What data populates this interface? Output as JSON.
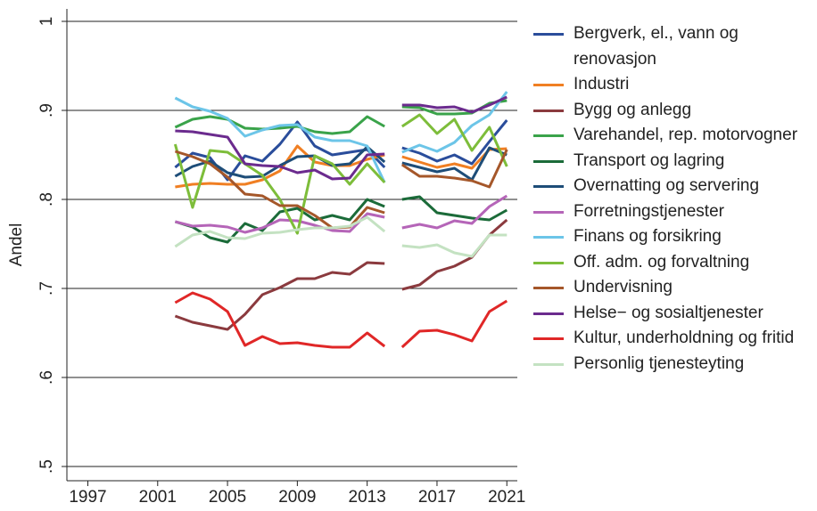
{
  "chart_data": {
    "type": "line",
    "y_label": "Andel",
    "x": [
      2002,
      2003,
      2004,
      2005,
      2006,
      2007,
      2008,
      2009,
      2010,
      2011,
      2012,
      2013,
      2014,
      null,
      2015,
      2016,
      2017,
      2018,
      2019,
      2020,
      2021
    ],
    "xlim": [
      1995.8,
      2021.6
    ],
    "xticks": [
      1997,
      2001,
      2005,
      2009,
      2013,
      2017,
      2021
    ],
    "ylim": [
      0.484,
      1.014
    ],
    "yticks": [
      {
        "value": 0.5,
        "label": ".5"
      },
      {
        "value": 0.6,
        "label": ".6"
      },
      {
        "value": 0.7,
        "label": ".7"
      },
      {
        "value": 0.8,
        "label": ".8"
      },
      {
        "value": 0.9,
        "label": ".9"
      },
      1
    ],
    "grid": true,
    "legend": "right",
    "series": [
      {
        "name": "Bergverk, el., vann og renovasjon",
        "color": "#2a4d9b",
        "values": [
          0.836,
          0.852,
          0.847,
          0.822,
          0.849,
          0.843,
          0.862,
          0.887,
          0.86,
          0.85,
          0.853,
          0.856,
          0.836,
          null,
          0.858,
          0.852,
          0.843,
          0.85,
          0.84,
          0.865,
          0.889
        ]
      },
      {
        "name": "Industri",
        "color": "#f07f23",
        "values": [
          0.814,
          0.817,
          0.818,
          0.817,
          0.817,
          0.822,
          0.832,
          0.86,
          0.842,
          0.838,
          0.838,
          0.845,
          0.85,
          null,
          0.848,
          0.842,
          0.836,
          0.84,
          0.835,
          0.856,
          0.857
        ]
      },
      {
        "name": "Bygg og anlegg",
        "color": "#8b3a3e",
        "values": [
          0.669,
          0.662,
          0.658,
          0.654,
          0.671,
          0.693,
          0.701,
          0.711,
          0.711,
          0.718,
          0.716,
          0.729,
          0.728,
          null,
          0.699,
          0.704,
          0.719,
          0.725,
          0.735,
          0.76,
          0.777
        ]
      },
      {
        "name": "Varehandel, rep. motorvogner",
        "color": "#3aa34a",
        "values": [
          0.881,
          0.89,
          0.893,
          0.89,
          0.88,
          0.879,
          0.88,
          0.882,
          0.876,
          0.874,
          0.876,
          0.893,
          0.882,
          null,
          0.904,
          0.903,
          0.896,
          0.896,
          0.897,
          0.908,
          0.911
        ]
      },
      {
        "name": "Transport og lagring",
        "color": "#1b6b39",
        "values": [
          0.775,
          0.769,
          0.757,
          0.752,
          0.773,
          0.765,
          0.786,
          0.79,
          0.777,
          0.782,
          0.777,
          0.8,
          0.792,
          null,
          0.8,
          0.803,
          0.785,
          0.782,
          0.779,
          0.777,
          0.788
        ]
      },
      {
        "name": "Overnatting og servering",
        "color": "#1e4d78",
        "values": [
          0.826,
          0.837,
          0.843,
          0.83,
          0.825,
          0.826,
          0.838,
          0.848,
          0.849,
          0.838,
          0.84,
          0.859,
          0.842,
          null,
          0.841,
          0.836,
          0.831,
          0.835,
          0.822,
          0.858,
          0.85
        ]
      },
      {
        "name": "Forretningstjenester",
        "color": "#b565b8",
        "values": [
          0.775,
          0.77,
          0.771,
          0.769,
          0.763,
          0.768,
          0.777,
          0.776,
          0.771,
          0.765,
          0.764,
          0.784,
          0.78,
          null,
          0.768,
          0.772,
          0.768,
          0.776,
          0.773,
          0.792,
          0.804
        ]
      },
      {
        "name": "Finans og forsikring",
        "color": "#6cc5e8",
        "values": [
          0.914,
          0.904,
          0.899,
          0.891,
          0.871,
          0.878,
          0.883,
          0.884,
          0.87,
          0.866,
          0.866,
          0.86,
          0.819,
          null,
          0.853,
          0.861,
          0.854,
          0.864,
          0.883,
          0.895,
          0.921
        ]
      },
      {
        "name": "Off. adm. og forvaltning",
        "color": "#7dbd3a",
        "values": [
          0.862,
          0.791,
          0.855,
          0.853,
          0.84,
          0.827,
          0.8,
          0.762,
          0.849,
          0.84,
          0.817,
          0.84,
          0.819,
          null,
          0.882,
          0.895,
          0.874,
          0.89,
          0.855,
          0.881,
          0.837
        ]
      },
      {
        "name": "Undervisning",
        "color": "#a5572a",
        "values": [
          0.854,
          0.848,
          0.84,
          0.825,
          0.806,
          0.804,
          0.793,
          0.793,
          0.782,
          0.768,
          0.769,
          0.791,
          0.785,
          null,
          0.839,
          0.826,
          0.826,
          0.824,
          0.821,
          0.814,
          0.856
        ]
      },
      {
        "name": "Helse− og sosialtjenester",
        "color": "#6b2b8e",
        "values": [
          0.877,
          0.876,
          0.873,
          0.87,
          0.84,
          0.838,
          0.837,
          0.83,
          0.833,
          0.823,
          0.824,
          0.85,
          0.851,
          null,
          0.906,
          0.906,
          0.903,
          0.904,
          0.898,
          0.906,
          0.915
        ]
      },
      {
        "name": "Kultur, underholdning og fritid",
        "color": "#e02727",
        "values": [
          0.684,
          0.695,
          0.688,
          0.674,
          0.636,
          0.646,
          0.638,
          0.639,
          0.636,
          0.634,
          0.634,
          0.65,
          0.635,
          null,
          0.634,
          0.652,
          0.653,
          0.648,
          0.641,
          0.674,
          0.686
        ]
      },
      {
        "name": "Personlig tjenesteyting",
        "color": "#c4e2c2",
        "values": [
          0.747,
          0.76,
          0.764,
          0.757,
          0.756,
          0.762,
          0.763,
          0.766,
          0.768,
          0.768,
          0.77,
          0.78,
          0.764,
          null,
          0.748,
          0.746,
          0.749,
          0.74,
          0.736,
          0.76,
          0.76
        ]
      }
    ]
  }
}
